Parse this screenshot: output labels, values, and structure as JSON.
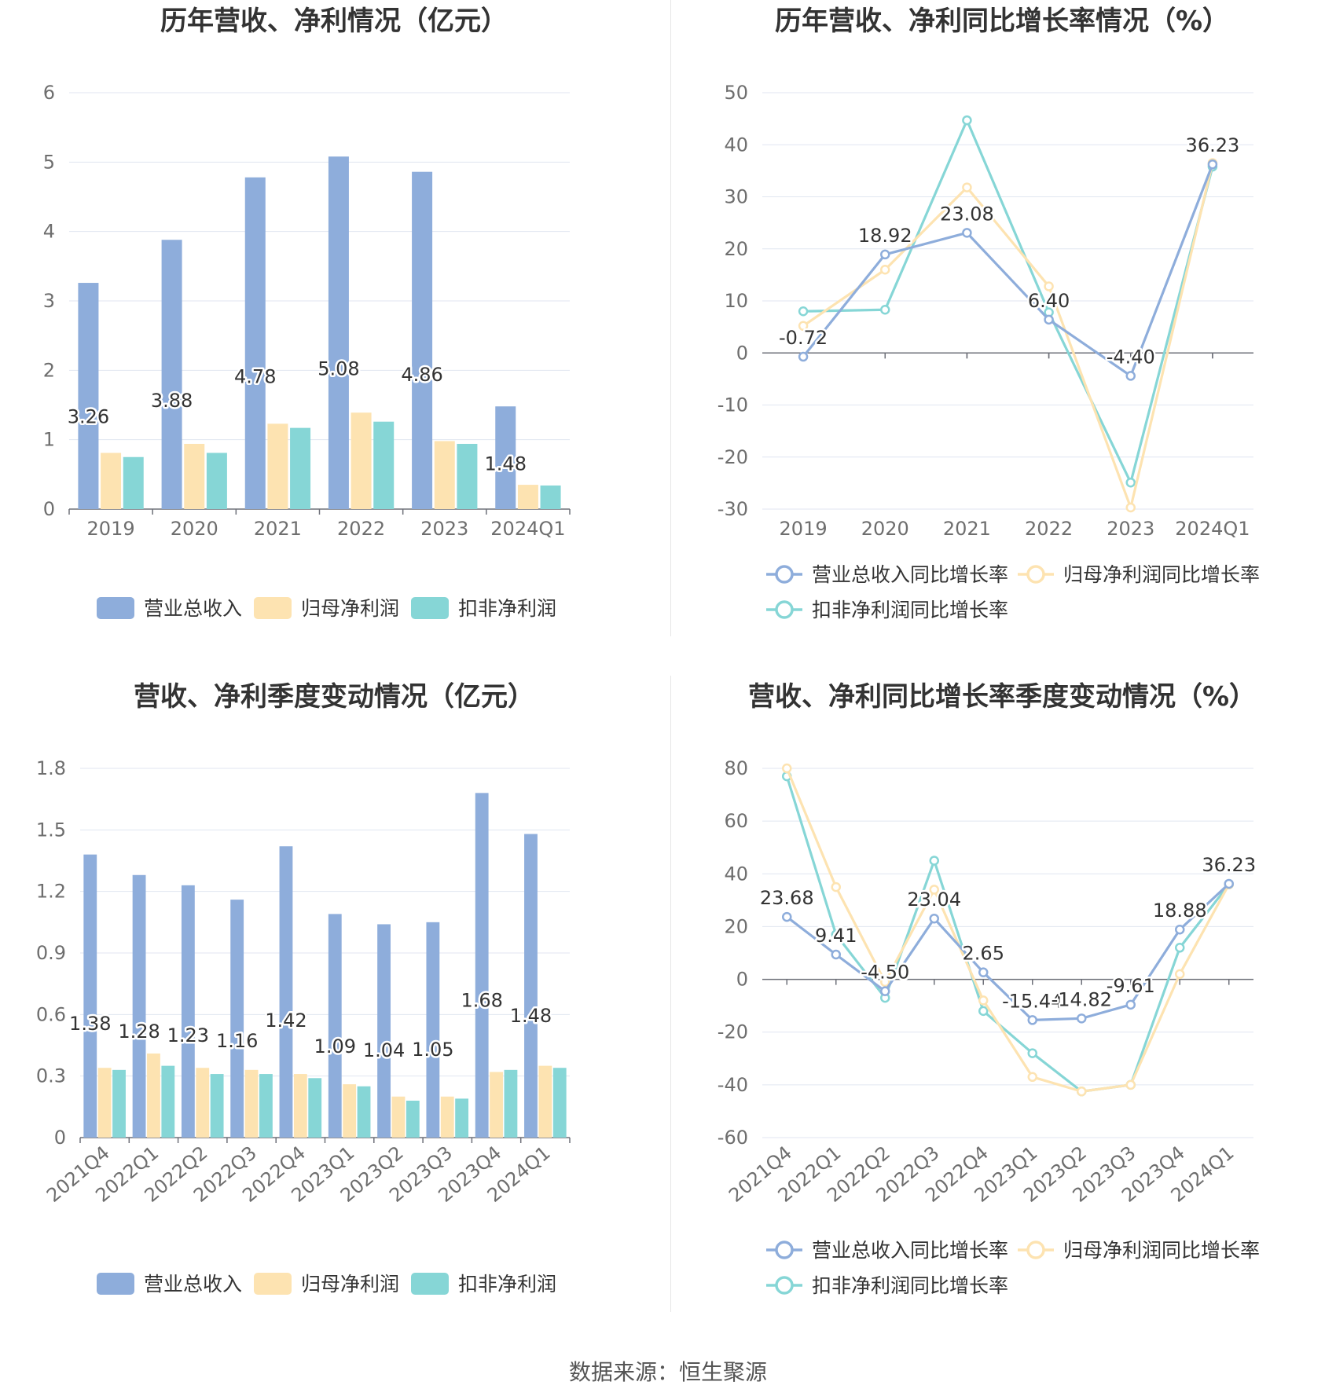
{
  "colors": {
    "revenue": "#8eaddb",
    "net_profit": "#fde3b1",
    "deducted_profit": "#86d6d6"
  },
  "source": "数据来源：恒生聚源",
  "chart_data": [
    {
      "type": "bar",
      "title": "历年营收、净利情况（亿元）",
      "categories": [
        "2019",
        "2020",
        "2021",
        "2022",
        "2023",
        "2024Q1"
      ],
      "ylim": [
        0,
        6
      ],
      "yticks": [
        "0",
        "1",
        "2",
        "3",
        "4",
        "5",
        "6"
      ],
      "series": [
        {
          "name": "营业总收入",
          "color": "#8eaddb",
          "values": [
            3.26,
            3.88,
            4.78,
            5.08,
            4.86,
            1.48
          ],
          "labels": [
            "3.26",
            "3.88",
            "4.78",
            "5.08",
            "4.86",
            "1.48"
          ]
        },
        {
          "name": "归母净利润",
          "color": "#fde3b1",
          "values": [
            0.81,
            0.94,
            1.23,
            1.39,
            0.98,
            0.35
          ]
        },
        {
          "name": "扣非净利润",
          "color": "#86d6d6",
          "values": [
            0.75,
            0.81,
            1.17,
            1.26,
            0.94,
            0.34
          ]
        }
      ]
    },
    {
      "type": "line",
      "title": "历年营收、净利同比增长率情况（%）",
      "categories": [
        "2019",
        "2020",
        "2021",
        "2022",
        "2023",
        "2024Q1"
      ],
      "ylim": [
        -30,
        50
      ],
      "yticks": [
        "-30",
        "-20",
        "-10",
        "0",
        "10",
        "20",
        "30",
        "40",
        "50"
      ],
      "series": [
        {
          "name": "营业总收入同比增长率",
          "color": "#8eaddb",
          "values": [
            -0.72,
            18.92,
            23.08,
            6.4,
            -4.4,
            36.23
          ],
          "labels": [
            "-0.72",
            "18.92",
            "23.08",
            "6.40",
            "-4.40",
            "36.23"
          ]
        },
        {
          "name": "归母净利润同比增长率",
          "color": "#fde3b1",
          "values": [
            5.2,
            16.0,
            31.8,
            12.8,
            -29.7,
            36.5
          ]
        },
        {
          "name": "扣非净利润同比增长率",
          "color": "#86d6d6",
          "values": [
            8.0,
            8.3,
            44.7,
            7.8,
            -24.9,
            35.8
          ]
        }
      ]
    },
    {
      "type": "bar",
      "title": "营收、净利季度变动情况（亿元）",
      "categories": [
        "2021Q4",
        "2022Q1",
        "2022Q2",
        "2022Q3",
        "2022Q4",
        "2023Q1",
        "2023Q2",
        "2023Q3",
        "2023Q4",
        "2024Q1"
      ],
      "ylim": [
        0,
        1.8
      ],
      "yticks": [
        "0",
        "0.3",
        "0.6",
        "0.9",
        "1.2",
        "1.5",
        "1.8"
      ],
      "series": [
        {
          "name": "营业总收入",
          "color": "#8eaddb",
          "values": [
            1.38,
            1.28,
            1.23,
            1.16,
            1.42,
            1.09,
            1.04,
            1.05,
            1.68,
            1.48
          ],
          "labels": [
            "1.38",
            "1.28",
            "1.23",
            "1.16",
            "1.42",
            "1.09",
            "1.04",
            "1.05",
            "1.68",
            "1.48"
          ]
        },
        {
          "name": "归母净利润",
          "color": "#fde3b1",
          "values": [
            0.34,
            0.41,
            0.34,
            0.33,
            0.31,
            0.26,
            0.2,
            0.2,
            0.32,
            0.35
          ]
        },
        {
          "name": "扣非净利润",
          "color": "#86d6d6",
          "values": [
            0.33,
            0.35,
            0.31,
            0.31,
            0.29,
            0.25,
            0.18,
            0.19,
            0.33,
            0.34
          ]
        }
      ]
    },
    {
      "type": "line",
      "title": "营收、净利同比增长率季度变动情况（%）",
      "categories": [
        "2021Q4",
        "2022Q1",
        "2022Q2",
        "2022Q3",
        "2022Q4",
        "2023Q1",
        "2023Q2",
        "2023Q3",
        "2023Q4",
        "2024Q1"
      ],
      "ylim": [
        -60,
        80
      ],
      "yticks": [
        "-60",
        "-40",
        "-20",
        "0",
        "20",
        "40",
        "60",
        "80"
      ],
      "series": [
        {
          "name": "营业总收入同比增长率",
          "color": "#8eaddb",
          "values": [
            23.68,
            9.41,
            -4.5,
            23.04,
            2.65,
            -15.44,
            -14.82,
            -9.61,
            18.88,
            36.23
          ],
          "labels": [
            "23.68",
            "9.41",
            "-4.50",
            "23.04",
            "2.65",
            "-15.44",
            "-14.82",
            "-9.61",
            "18.88",
            "36.23"
          ]
        },
        {
          "name": "归母净利润同比增长率",
          "color": "#fde3b1",
          "values": [
            80.0,
            35.0,
            -1.0,
            34.0,
            -8.0,
            -37.0,
            -42.5,
            -40.0,
            2.0,
            36.0
          ]
        },
        {
          "name": "扣非净利润同比增长率",
          "color": "#86d6d6",
          "values": [
            77.0,
            17.0,
            -7.0,
            45.0,
            -12.0,
            -28.0,
            -42.5,
            -40.0,
            12.0,
            36.0
          ]
        }
      ]
    }
  ]
}
